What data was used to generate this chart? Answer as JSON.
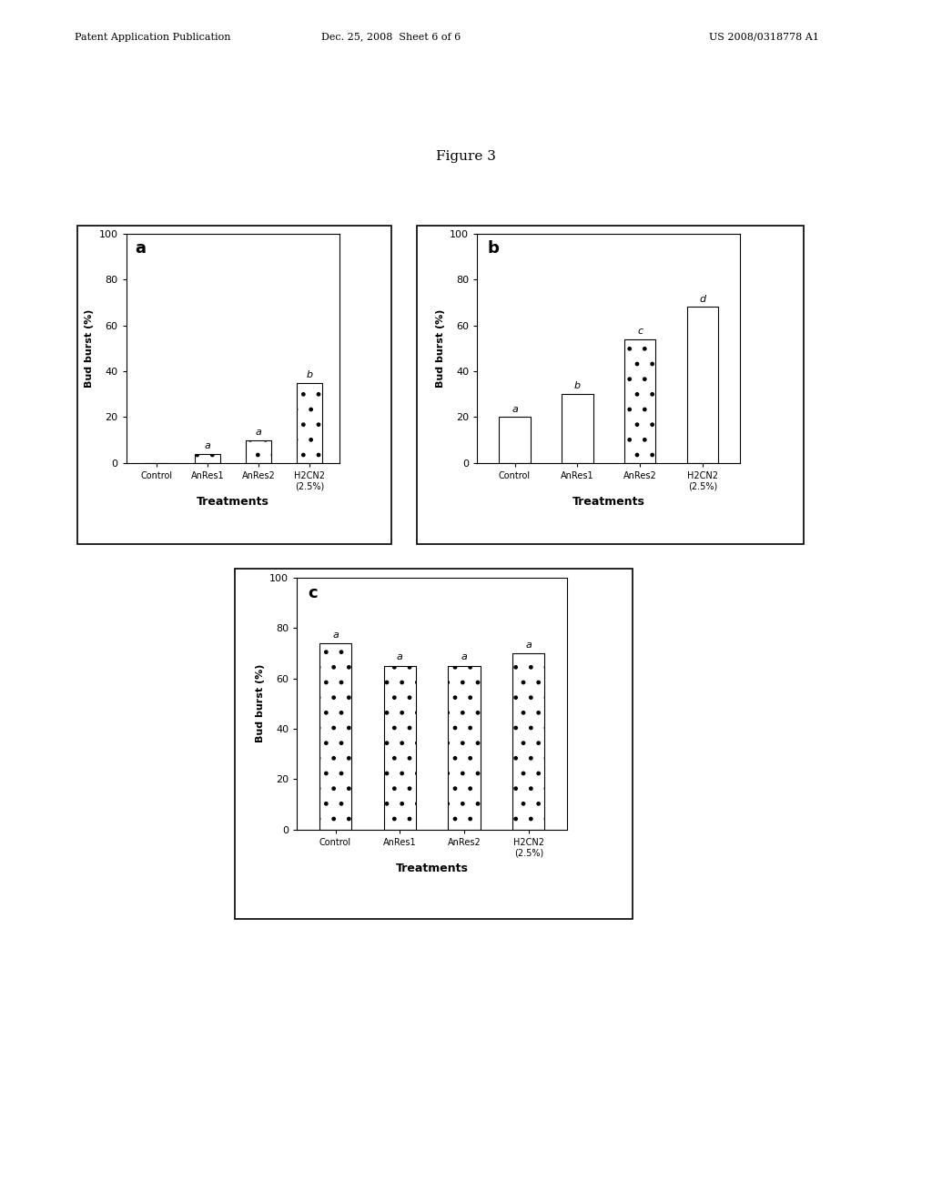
{
  "figure_title": "Figure 3",
  "panel_a": {
    "label": "a",
    "categories": [
      "Control",
      "AnRes1",
      "AnRes2",
      "H2CN2\n(2.5%)"
    ],
    "values": [
      0,
      4,
      10,
      35
    ],
    "letter_labels": [
      "",
      "a",
      "a",
      "b"
    ],
    "bar_hatches": [
      "",
      ".",
      ".",
      "."
    ],
    "bar_colors": [
      "white",
      "white",
      "white",
      "white"
    ],
    "ylabel": "Bud burst (%)",
    "xlabel": "Treatments",
    "ylim": [
      0,
      100
    ],
    "yticks": [
      0,
      20,
      40,
      60,
      80,
      100
    ]
  },
  "panel_b": {
    "label": "b",
    "categories": [
      "Control",
      "AnRes1",
      "AnRes2",
      "H2CN2\n(2.5%)"
    ],
    "values": [
      20,
      30,
      54,
      68
    ],
    "letter_labels": [
      "a",
      "b",
      "c",
      "d"
    ],
    "bar_hatches": [
      "",
      "",
      ".",
      ""
    ],
    "bar_colors": [
      "white",
      "white",
      "white",
      "white"
    ],
    "ylabel": "Bud burst (%)",
    "xlabel": "Treatments",
    "ylim": [
      0,
      100
    ],
    "yticks": [
      0,
      20,
      40,
      60,
      80,
      100
    ]
  },
  "panel_c": {
    "label": "c",
    "categories": [
      "Control",
      "AnRes1",
      "AnRes2",
      "H2CN2\n(2.5%)"
    ],
    "values": [
      74,
      65,
      65,
      70
    ],
    "letter_labels": [
      "a",
      "a",
      "a",
      "a"
    ],
    "bar_hatches": [
      ".",
      ".",
      ".",
      "."
    ],
    "bar_colors": [
      "white",
      "white",
      "white",
      "white"
    ],
    "ylabel": "Bud burst (%)",
    "xlabel": "Treatments",
    "ylim": [
      0,
      100
    ],
    "yticks": [
      0,
      20,
      40,
      60,
      80,
      100
    ]
  },
  "bar_edgecolor": "#000000",
  "bg_color": "#ffffff",
  "header_left": "Patent Application Publication",
  "header_mid": "Dec. 25, 2008  Sheet 6 of 6",
  "header_right": "US 2008/0318778 A1"
}
